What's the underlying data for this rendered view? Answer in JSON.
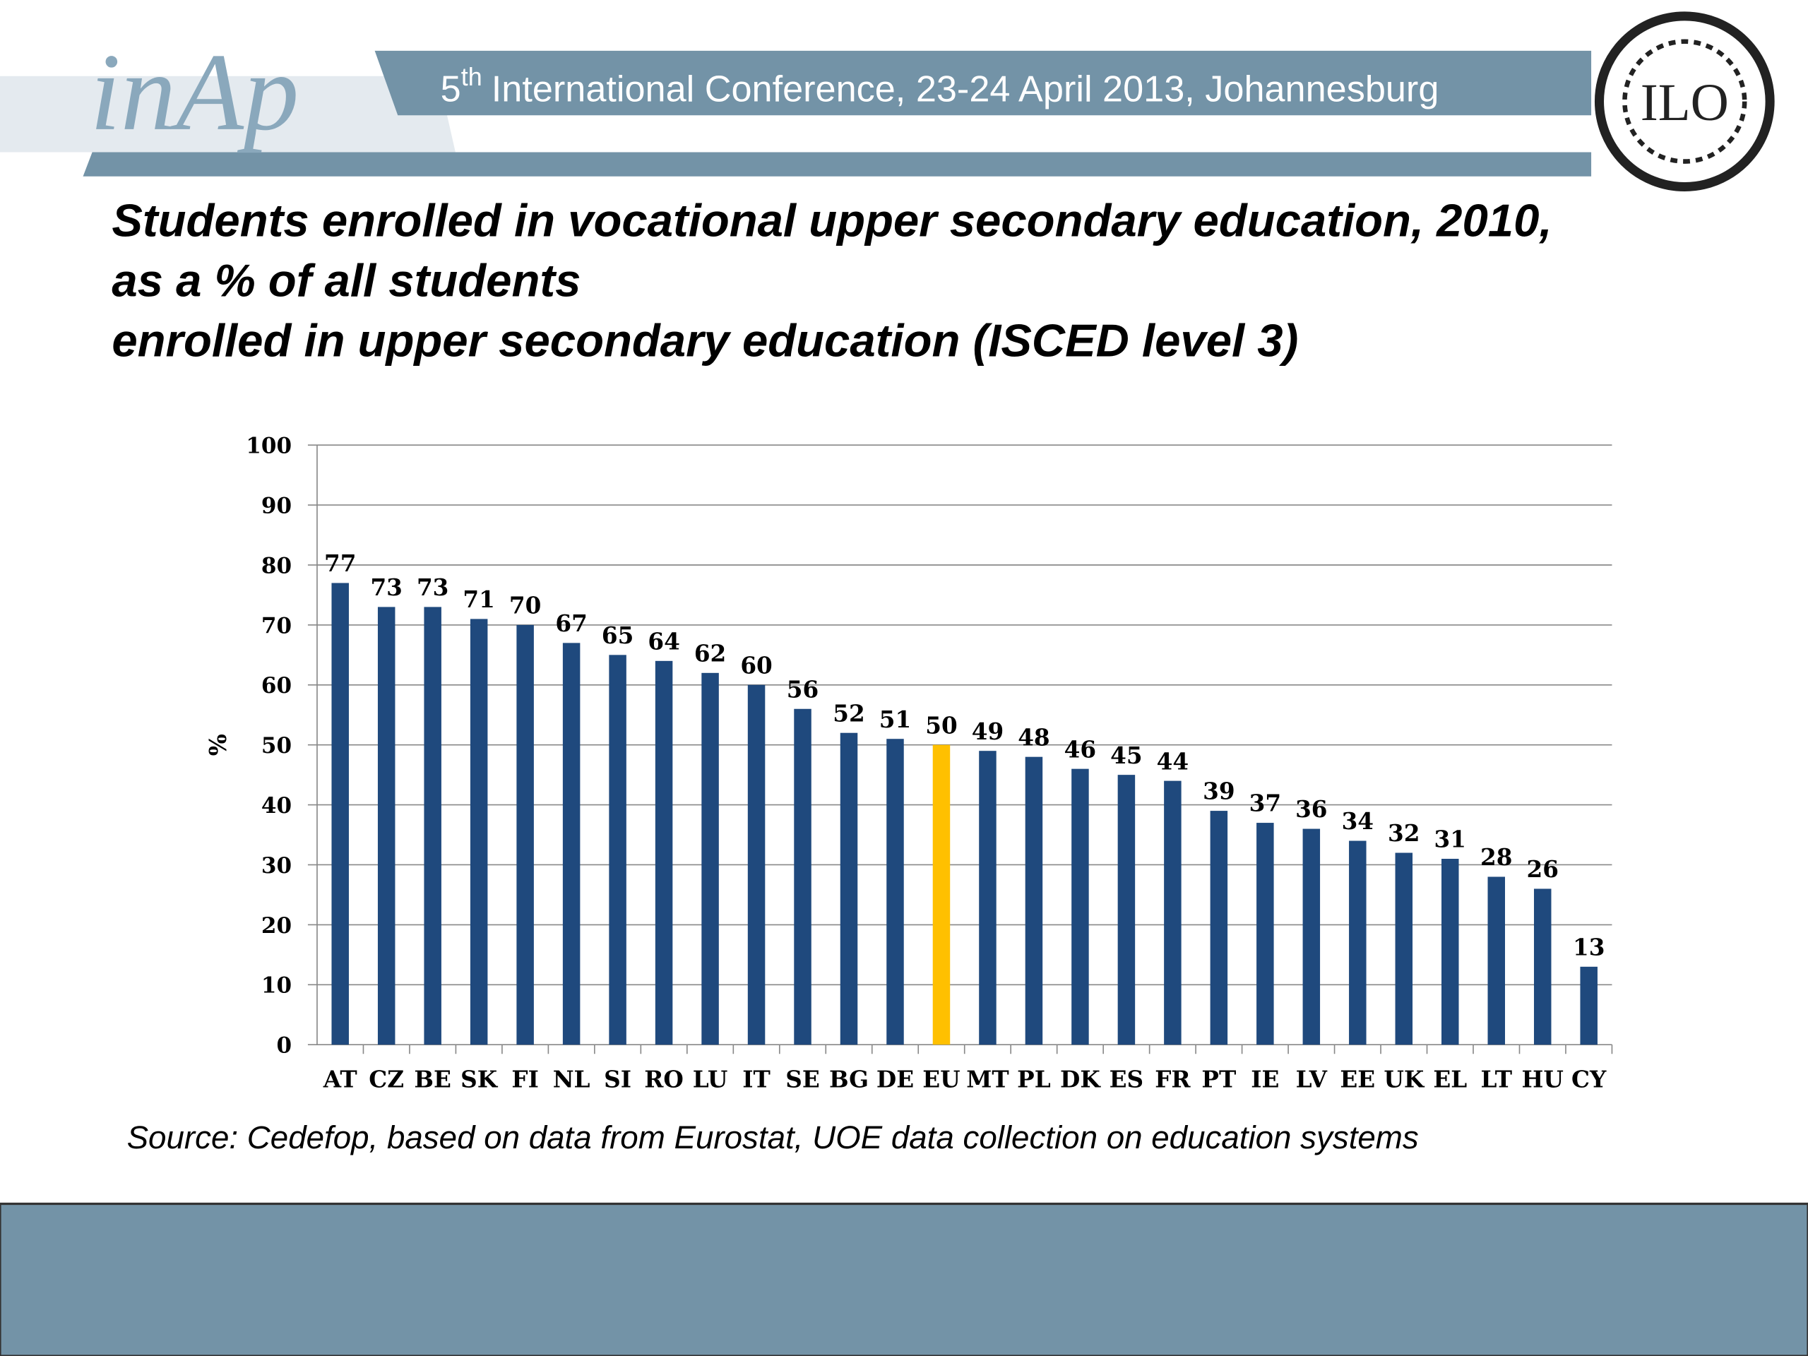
{
  "header": {
    "logo": "inAp",
    "conference_number": "5",
    "conference_suffix": "th",
    "conference": "International Conference, 23-24 April 2013, Johannesburg",
    "ilo_logo": "ILO"
  },
  "chart_data": {
    "type": "bar",
    "title": [
      "Students enrolled in vocational upper secondary education, 2010,",
      "as a % of all students",
      "enrolled in upper secondary education (ISCED level 3)"
    ],
    "y_label": "%",
    "categories": [
      "AT",
      "CZ",
      "BE",
      "SK",
      "FI",
      "NL",
      "SI",
      "RO",
      "LU",
      "IT",
      "SE",
      "BG",
      "DE",
      "EU",
      "MT",
      "PL",
      "DK",
      "ES",
      "FR",
      "PT",
      "IE",
      "LV",
      "EE",
      "UK",
      "EL",
      "LT",
      "HU",
      "CY"
    ],
    "values": [
      77,
      73,
      73,
      71,
      70,
      67,
      65,
      64,
      62,
      60,
      56,
      52,
      51,
      50,
      49,
      48,
      46,
      45,
      44,
      39,
      37,
      36,
      34,
      32,
      31,
      28,
      26,
      13
    ],
    "colors": [
      "#1f497d",
      "#1f497d",
      "#1f497d",
      "#1f497d",
      "#1f497d",
      "#1f497d",
      "#1f497d",
      "#1f497d",
      "#1f497d",
      "#1f497d",
      "#1f497d",
      "#1f497d",
      "#1f497d",
      "#ffc000",
      "#1f497d",
      "#1f497d",
      "#1f497d",
      "#1f497d",
      "#1f497d",
      "#1f497d",
      "#1f497d",
      "#1f497d",
      "#1f497d",
      "#1f497d",
      "#1f497d",
      "#1f497d",
      "#1f497d",
      "#1f497d"
    ],
    "ylim": [
      0,
      100
    ],
    "yticks": [
      0,
      10,
      20,
      30,
      40,
      50,
      60,
      70,
      80,
      90,
      100
    ],
    "grid": true,
    "source": "Source: Cedefop, based on data from Eurostat, UOE data collection on education systems"
  }
}
